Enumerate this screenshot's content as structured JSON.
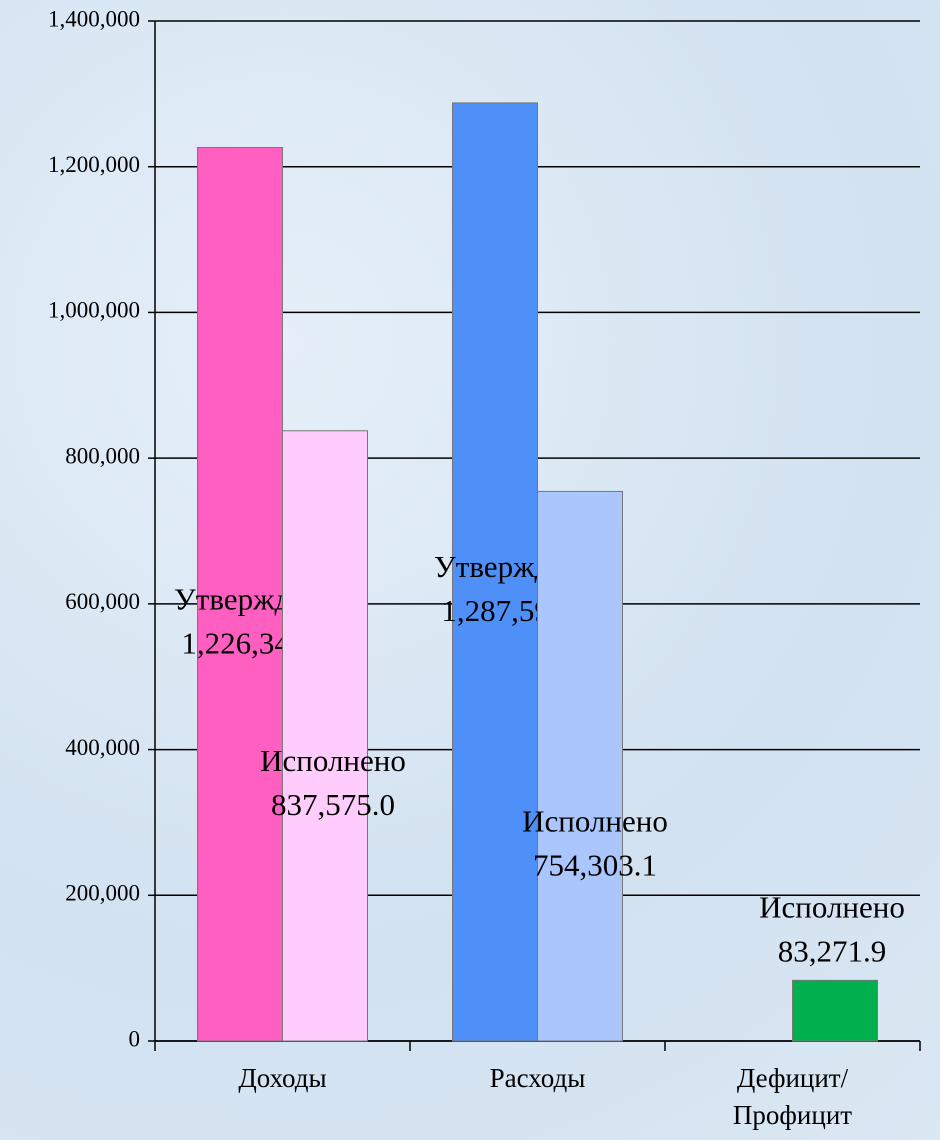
{
  "chart_data": {
    "type": "bar",
    "categories": [
      "Доходы",
      "Расходы",
      "Дефицит/\nПрофицит"
    ],
    "series": [
      {
        "name": "Утверждено",
        "colors": [
          "#ff5fc0",
          "#4f8ff8",
          null
        ],
        "values": [
          1226341.3,
          1287593.2,
          null
        ],
        "value_labels": [
          "1,226,341.3",
          "1,287,593.2",
          null
        ]
      },
      {
        "name": "Исполнено",
        "colors": [
          "#ffccfc",
          "#aac6fc",
          "#00b04c"
        ],
        "values": [
          837575.0,
          754303.1,
          83271.9
        ],
        "value_labels": [
          "837,575.0",
          "754,303.1",
          "83,271.9"
        ]
      }
    ],
    "ylim": [
      0,
      1400000
    ],
    "yticks": [
      0,
      {
        "value": 200000,
        "label": "200,000"
      },
      {
        "value": 400000,
        "label": "400,000"
      },
      {
        "value": 600000,
        "label": "600,000"
      },
      {
        "value": 800000,
        "label": "800,000"
      },
      {
        "value": 1000000,
        "label": "1,000,000"
      },
      {
        "value": 1200000,
        "label": "1,200,000"
      },
      {
        "value": 1400000,
        "label": "1,400,000"
      }
    ],
    "grid": true
  }
}
